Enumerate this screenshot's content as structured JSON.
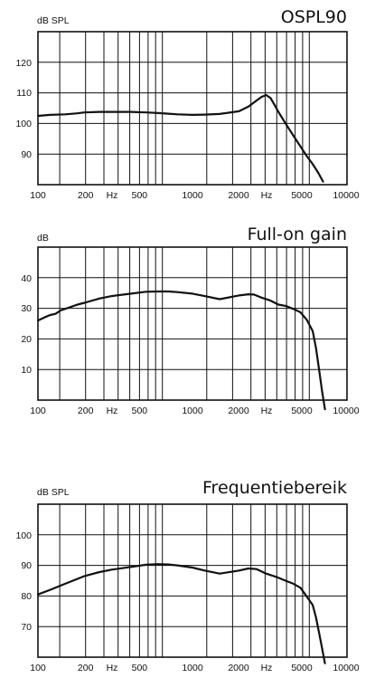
{
  "chart_data": [
    {
      "type": "line",
      "title": "OSPL90",
      "ylabel": "dB SPL",
      "xscale": "log",
      "xlim": [
        100,
        10000
      ],
      "ylim": [
        80,
        130
      ],
      "yticks": [
        90,
        100,
        110,
        120
      ],
      "xtick_labels": [
        "100",
        "200",
        "Hz",
        "500",
        "1000",
        "2000",
        "Hz",
        "5000",
        "10000"
      ],
      "grid": true,
      "series": [
        {
          "x": [
            100,
            120,
            150,
            180,
            200,
            250,
            300,
            400,
            500,
            600,
            700,
            800,
            1000,
            1200,
            1500,
            2000,
            2300,
            2600,
            2800,
            3000,
            3200,
            3400,
            3600,
            4000,
            4500,
            5000,
            5500,
            6000,
            6500,
            7000
          ],
          "y": [
            102.5,
            102.8,
            103.0,
            103.3,
            103.6,
            103.8,
            103.8,
            103.8,
            103.6,
            103.4,
            103.2,
            103.0,
            102.8,
            102.9,
            103.1,
            104.0,
            105.5,
            107.5,
            108.7,
            109.3,
            108.3,
            106.0,
            103.8,
            100.0,
            96.0,
            92.5,
            89.3,
            86.7,
            84.0,
            81.0
          ]
        }
      ]
    },
    {
      "type": "line",
      "title": "Full-on gain",
      "ylabel": "dB",
      "xscale": "log",
      "xlim": [
        100,
        10000
      ],
      "ylim": [
        0,
        50
      ],
      "yticks": [
        10,
        20,
        30,
        40
      ],
      "xtick_labels": [
        "100",
        "200",
        "Hz",
        "500",
        "1000",
        "2000",
        "Hz",
        "5000",
        "10000"
      ],
      "grid": true,
      "series": [
        {
          "x": [
            100,
            110,
            120,
            130,
            140,
            160,
            180,
            200,
            250,
            300,
            400,
            500,
            600,
            700,
            800,
            1000,
            1200,
            1500,
            2000,
            2300,
            2500,
            2800,
            3200,
            3600,
            4000,
            4500,
            5000,
            5500,
            6000,
            6300,
            6600,
            6900,
            7200
          ],
          "y": [
            26.0,
            27.0,
            27.8,
            28.2,
            29.3,
            30.3,
            31.2,
            31.8,
            33.2,
            34.0,
            34.8,
            35.4,
            35.5,
            35.5,
            35.3,
            34.8,
            34.0,
            33.0,
            34.2,
            34.6,
            34.5,
            33.5,
            32.5,
            31.2,
            30.8,
            29.8,
            28.7,
            26.2,
            22.5,
            17.0,
            10.0,
            3.0,
            -3.0
          ]
        }
      ]
    },
    {
      "type": "line",
      "title": "Frequentiebereik",
      "ylabel": "dB SPL",
      "xscale": "log",
      "xlim": [
        100,
        10000
      ],
      "ylim": [
        60,
        110
      ],
      "yticks": [
        70,
        80,
        90,
        100
      ],
      "xtick_labels": [
        "100",
        "200",
        "Hz",
        "500",
        "1000",
        "2000",
        "Hz",
        "5000",
        "10000"
      ],
      "grid": true,
      "series": [
        {
          "x": [
            100,
            120,
            150,
            180,
            200,
            250,
            300,
            400,
            500,
            600,
            700,
            800,
            1000,
            1200,
            1500,
            2000,
            2300,
            2600,
            3000,
            3500,
            4000,
            4500,
            5000,
            5500,
            6000,
            6300,
            6600,
            6900,
            7200
          ],
          "y": [
            80.5,
            82.0,
            84.0,
            85.6,
            86.5,
            87.8,
            88.6,
            89.5,
            90.2,
            90.4,
            90.3,
            90.0,
            89.3,
            88.3,
            87.3,
            88.3,
            89.0,
            88.8,
            87.3,
            86.2,
            85.0,
            84.0,
            82.7,
            79.8,
            77.0,
            73.0,
            68.0,
            63.0,
            58.0
          ]
        }
      ]
    }
  ]
}
